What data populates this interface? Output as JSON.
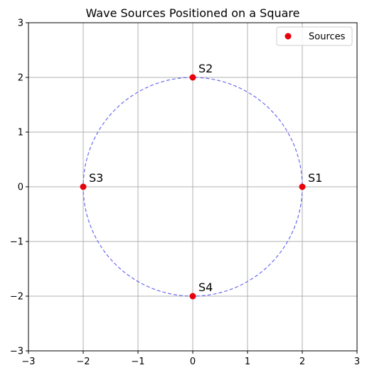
{
  "chart_data": {
    "type": "scatter",
    "title": "Wave Sources Positioned on a Square",
    "xlabel": "",
    "ylabel": "",
    "xlim": [
      -3,
      3
    ],
    "ylim": [
      -3,
      3
    ],
    "grid": true,
    "x_ticks": [
      -3,
      -2,
      -1,
      0,
      1,
      2,
      3
    ],
    "y_ticks": [
      -3,
      -2,
      -1,
      0,
      1,
      2,
      3
    ],
    "x_tick_labels": [
      "−3",
      "−2",
      "−1",
      "0",
      "1",
      "2",
      "3"
    ],
    "y_tick_labels": [
      "−3",
      "−2",
      "−1",
      "0",
      "1",
      "2",
      "3"
    ],
    "series": [
      {
        "name": "Sources",
        "color": "#e8000b",
        "points": [
          {
            "x": 2,
            "y": 0,
            "label": "S1"
          },
          {
            "x": 0,
            "y": 2,
            "label": "S2"
          },
          {
            "x": -2,
            "y": 0,
            "label": "S3"
          },
          {
            "x": 0,
            "y": -2,
            "label": "S4"
          }
        ]
      }
    ],
    "circle": {
      "center": [
        0,
        0
      ],
      "radius": 2,
      "color": "#6b6bf0",
      "style": "dashed"
    },
    "legend": {
      "position": "top-right",
      "entries": [
        {
          "label": "Sources",
          "color": "#e8000b"
        }
      ]
    }
  }
}
